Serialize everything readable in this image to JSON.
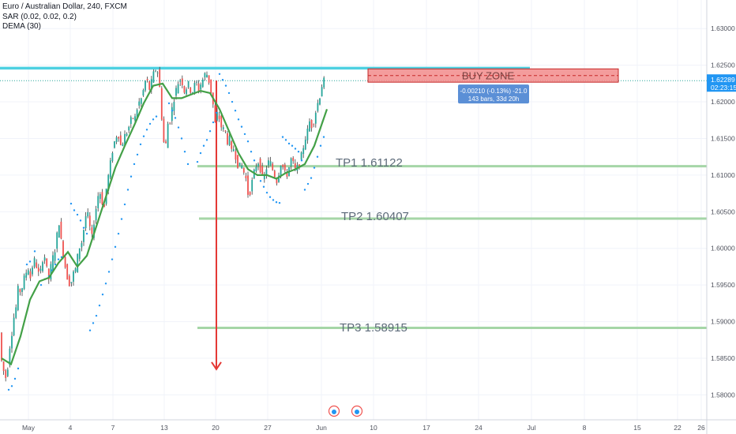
{
  "legend": {
    "symbol": "Euro / Australian Dollar, 240, FXCM",
    "sar": "SAR (0.02, 0.02, 0.2)",
    "dema": "DEMA (30)"
  },
  "colors": {
    "up": "#26a69a",
    "down": "#ef5350",
    "wick": "#3d3d3d",
    "sar": "#2196f3",
    "dema": "#43a047",
    "resistance": "#4dd0e1",
    "tp": "#a5d6a7",
    "arrow": "#e53935",
    "zone_fill": "#f28b8b",
    "zone_border": "#c62828",
    "price_tag": "#2196f3",
    "measure_tag": "#5b8fd6"
  },
  "chart_data": {
    "type": "candlestick",
    "title": "Euro / Australian Dollar, 240, FXCM",
    "ylim": [
      1.5766,
      1.6339
    ],
    "y_ticks": [
      "1.63000",
      "1.62500",
      "1.62000",
      "1.61500",
      "1.61000",
      "1.60500",
      "1.60000",
      "1.59500",
      "1.59000",
      "1.58500",
      "1.58000"
    ],
    "x_ticks": [
      "May",
      "4",
      "7",
      "13",
      "20",
      "27",
      "Jun",
      "10",
      "17",
      "24",
      "Jul",
      "8",
      "15",
      "22",
      "26"
    ],
    "last_price": "1.62289",
    "countdown": "02:23:15",
    "price_path": [
      [
        0,
        1.5885
      ],
      [
        3,
        1.584
      ],
      [
        6,
        1.583
      ],
      [
        9,
        1.582
      ],
      [
        12,
        1.586
      ],
      [
        15,
        1.588
      ],
      [
        18,
        1.5905
      ],
      [
        21,
        1.592
      ],
      [
        24,
        1.595
      ],
      [
        27,
        1.5938
      ],
      [
        30,
        1.5955
      ],
      [
        33,
        1.5965
      ],
      [
        36,
        1.5975
      ],
      [
        39,
        1.596
      ],
      [
        42,
        1.5978
      ],
      [
        45,
        1.5985
      ],
      [
        48,
        1.597
      ],
      [
        51,
        1.596
      ],
      [
        54,
        1.5985
      ],
      [
        57,
        1.599
      ],
      [
        60,
        1.597
      ],
      [
        63,
        1.5955
      ],
      [
        66,
        1.5985
      ],
      [
        69,
        1.599
      ],
      [
        72,
        1.601
      ],
      [
        75,
        1.604
      ],
      [
        78,
        1.601
      ],
      [
        81,
        1.599
      ],
      [
        84,
        1.597
      ],
      [
        87,
        1.5955
      ],
      [
        90,
        1.595
      ],
      [
        93,
        1.5965
      ],
      [
        96,
        1.597
      ],
      [
        99,
        1.599
      ],
      [
        102,
        1.6005
      ],
      [
        105,
        1.601
      ],
      [
        108,
        1.604
      ],
      [
        111,
        1.605
      ],
      [
        114,
        1.603
      ],
      [
        117,
        1.6015
      ],
      [
        120,
        1.604
      ],
      [
        123,
        1.606
      ],
      [
        126,
        1.608
      ],
      [
        129,
        1.607
      ],
      [
        132,
        1.605
      ],
      [
        135,
        1.608
      ],
      [
        138,
        1.61
      ],
      [
        141,
        1.612
      ],
      [
        144,
        1.614
      ],
      [
        147,
        1.615
      ],
      [
        150,
        1.616
      ],
      [
        153,
        1.614
      ],
      [
        156,
        1.6145
      ],
      [
        159,
        1.6155
      ],
      [
        162,
        1.616
      ],
      [
        165,
        1.617
      ],
      [
        168,
        1.618
      ],
      [
        171,
        1.6175
      ],
      [
        174,
        1.619
      ],
      [
        177,
        1.62
      ],
      [
        180,
        1.6205
      ],
      [
        183,
        1.622
      ],
      [
        186,
        1.6235
      ],
      [
        189,
        1.6215
      ],
      [
        192,
        1.6225
      ],
      [
        195,
        1.6238
      ],
      [
        198,
        1.6245
      ],
      [
        201,
        1.624
      ],
      [
        204,
        1.6205
      ],
      [
        207,
        1.615
      ],
      [
        210,
        1.6135
      ],
      [
        213,
        1.617
      ],
      [
        216,
        1.6175
      ],
      [
        219,
        1.6195
      ],
      [
        222,
        1.621
      ],
      [
        225,
        1.6222
      ],
      [
        228,
        1.6232
      ],
      [
        231,
        1.6228
      ],
      [
        234,
        1.6215
      ],
      [
        237,
        1.622
      ],
      [
        240,
        1.6225
      ],
      [
        243,
        1.621
      ],
      [
        246,
        1.622
      ],
      [
        249,
        1.6228
      ],
      [
        252,
        1.6215
      ],
      [
        255,
        1.6225
      ],
      [
        258,
        1.6232
      ],
      [
        261,
        1.624
      ],
      [
        264,
        1.6235
      ],
      [
        267,
        1.6218
      ],
      [
        270,
        1.62
      ],
      [
        273,
        1.617
      ],
      [
        276,
        1.6185
      ],
      [
        279,
        1.6175
      ],
      [
        282,
        1.616
      ],
      [
        285,
        1.6165
      ],
      [
        288,
        1.6145
      ],
      [
        291,
        1.615
      ],
      [
        294,
        1.613
      ],
      [
        297,
        1.6138
      ],
      [
        300,
        1.612
      ],
      [
        303,
        1.611
      ],
      [
        306,
        1.6115
      ],
      [
        309,
        1.6105
      ],
      [
        312,
        1.6095
      ],
      [
        315,
        1.6072
      ],
      [
        318,
        1.608
      ],
      [
        321,
        1.6098
      ],
      [
        324,
        1.611
      ],
      [
        327,
        1.612
      ],
      [
        330,
        1.611
      ],
      [
        333,
        1.6095
      ],
      [
        336,
        1.61
      ],
      [
        339,
        1.6115
      ],
      [
        342,
        1.612
      ],
      [
        345,
        1.611
      ],
      [
        348,
        1.61
      ],
      [
        351,
        1.6092
      ],
      [
        354,
        1.6105
      ],
      [
        357,
        1.612
      ],
      [
        360,
        1.6105
      ],
      [
        363,
        1.6098
      ],
      [
        366,
        1.6108
      ],
      [
        369,
        1.6122
      ],
      [
        372,
        1.6115
      ],
      [
        375,
        1.6105
      ],
      [
        378,
        1.6112
      ],
      [
        381,
        1.612
      ],
      [
        384,
        1.6135
      ],
      [
        387,
        1.615
      ],
      [
        390,
        1.616
      ],
      [
        393,
        1.6175
      ],
      [
        396,
        1.6165
      ],
      [
        399,
        1.618
      ],
      [
        402,
        1.6195
      ],
      [
        405,
        1.6205
      ],
      [
        408,
        1.6222
      ],
      [
        411,
        1.6229
      ]
    ],
    "sar_points": [
      [
        9,
        1.5807
      ],
      [
        13,
        1.5812
      ],
      [
        17,
        1.5822
      ],
      [
        21,
        1.5836
      ],
      [
        32,
        1.5978
      ],
      [
        36,
        1.5982
      ],
      [
        42,
        1.5996
      ],
      [
        50,
        1.595
      ],
      [
        55,
        1.5958
      ],
      [
        60,
        1.5962
      ],
      [
        64,
        1.597
      ],
      [
        68,
        1.5978
      ],
      [
        72,
        1.5985
      ],
      [
        76,
        1.5988
      ],
      [
        88,
        1.6061
      ],
      [
        92,
        1.6052
      ],
      [
        96,
        1.6046
      ],
      [
        100,
        1.6038
      ],
      [
        104,
        1.6028
      ],
      [
        108,
        1.602
      ],
      [
        112,
        1.5888
      ],
      [
        116,
        1.5898
      ],
      [
        120,
        1.5908
      ],
      [
        124,
        1.5922
      ],
      [
        128,
        1.5937
      ],
      [
        132,
        1.5952
      ],
      [
        136,
        1.5968
      ],
      [
        140,
        1.5985
      ],
      [
        144,
        1.6002
      ],
      [
        148,
        1.602
      ],
      [
        152,
        1.604
      ],
      [
        156,
        1.606
      ],
      [
        160,
        1.608
      ],
      [
        164,
        1.6098
      ],
      [
        168,
        1.6115
      ],
      [
        172,
        1.6128
      ],
      [
        176,
        1.6142
      ],
      [
        180,
        1.6153
      ],
      [
        184,
        1.6162
      ],
      [
        188,
        1.617
      ],
      [
        192,
        1.6176
      ],
      [
        196,
        1.618
      ],
      [
        212,
        1.6198
      ],
      [
        216,
        1.6188
      ],
      [
        220,
        1.6178
      ],
      [
        224,
        1.6165
      ],
      [
        228,
        1.615
      ],
      [
        232,
        1.6132
      ],
      [
        236,
        1.6115
      ],
      [
        248,
        1.6118
      ],
      [
        252,
        1.613
      ],
      [
        256,
        1.614
      ],
      [
        260,
        1.6148
      ],
      [
        264,
        1.616
      ],
      [
        268,
        1.6172
      ],
      [
        272,
        1.6185
      ],
      [
        276,
        1.6238
      ],
      [
        280,
        1.623
      ],
      [
        284,
        1.6222
      ],
      [
        288,
        1.6212
      ],
      [
        292,
        1.62
      ],
      [
        296,
        1.6188
      ],
      [
        300,
        1.6176
      ],
      [
        304,
        1.6166
      ],
      [
        308,
        1.6156
      ],
      [
        312,
        1.6146
      ],
      [
        316,
        1.6132
      ],
      [
        320,
        1.612
      ],
      [
        324,
        1.61
      ],
      [
        328,
        1.6092
      ],
      [
        332,
        1.6084
      ],
      [
        336,
        1.6076
      ],
      [
        340,
        1.607
      ],
      [
        344,
        1.6066
      ],
      [
        348,
        1.6063
      ],
      [
        352,
        1.6062
      ],
      [
        356,
        1.6152
      ],
      [
        360,
        1.6148
      ],
      [
        364,
        1.6143
      ],
      [
        368,
        1.614
      ],
      [
        372,
        1.6136
      ],
      [
        376,
        1.6132
      ],
      [
        380,
        1.612
      ],
      [
        384,
        1.608
      ],
      [
        388,
        1.6088
      ],
      [
        392,
        1.6096
      ],
      [
        396,
        1.611
      ],
      [
        400,
        1.6125
      ],
      [
        404,
        1.614
      ],
      [
        408,
        1.6152
      ]
    ],
    "dema_points": [
      [
        0,
        1.585
      ],
      [
        12,
        1.5842
      ],
      [
        24,
        1.588
      ],
      [
        36,
        1.593
      ],
      [
        48,
        1.5955
      ],
      [
        60,
        1.596
      ],
      [
        72,
        1.598
      ],
      [
        84,
        1.5995
      ],
      [
        96,
        1.5975
      ],
      [
        108,
        1.599
      ],
      [
        120,
        1.603
      ],
      [
        132,
        1.607
      ],
      [
        144,
        1.611
      ],
      [
        156,
        1.614
      ],
      [
        168,
        1.6168
      ],
      [
        180,
        1.6198
      ],
      [
        192,
        1.6222
      ],
      [
        204,
        1.6225
      ],
      [
        216,
        1.6205
      ],
      [
        228,
        1.6205
      ],
      [
        240,
        1.621
      ],
      [
        252,
        1.6215
      ],
      [
        264,
        1.6212
      ],
      [
        276,
        1.619
      ],
      [
        288,
        1.616
      ],
      [
        300,
        1.613
      ],
      [
        312,
        1.6108
      ],
      [
        324,
        1.61
      ],
      [
        336,
        1.61
      ],
      [
        348,
        1.6095
      ],
      [
        360,
        1.6103
      ],
      [
        372,
        1.6108
      ],
      [
        384,
        1.6115
      ],
      [
        396,
        1.614
      ],
      [
        412,
        1.619
      ]
    ],
    "levels": [
      {
        "name": "resistance",
        "price": 1.6246
      },
      {
        "name": "TP1",
        "label": "TP1 1.61122",
        "price": 1.61122
      },
      {
        "name": "TP2",
        "label": "TP2 1.60407",
        "price": 1.60407
      },
      {
        "name": "TP3",
        "label": "TP3 1.58915",
        "price": 1.58915
      }
    ],
    "buy_zone": {
      "label": "BUY ZONE",
      "top": 1.6245,
      "bottom": 1.62268
    },
    "measure": {
      "line1": "-0.00210 (-0.13%) -21.0",
      "line2": "143 bars, 33d 20h"
    },
    "arrow": {
      "from": 1.6229,
      "to": 1.5835
    }
  }
}
